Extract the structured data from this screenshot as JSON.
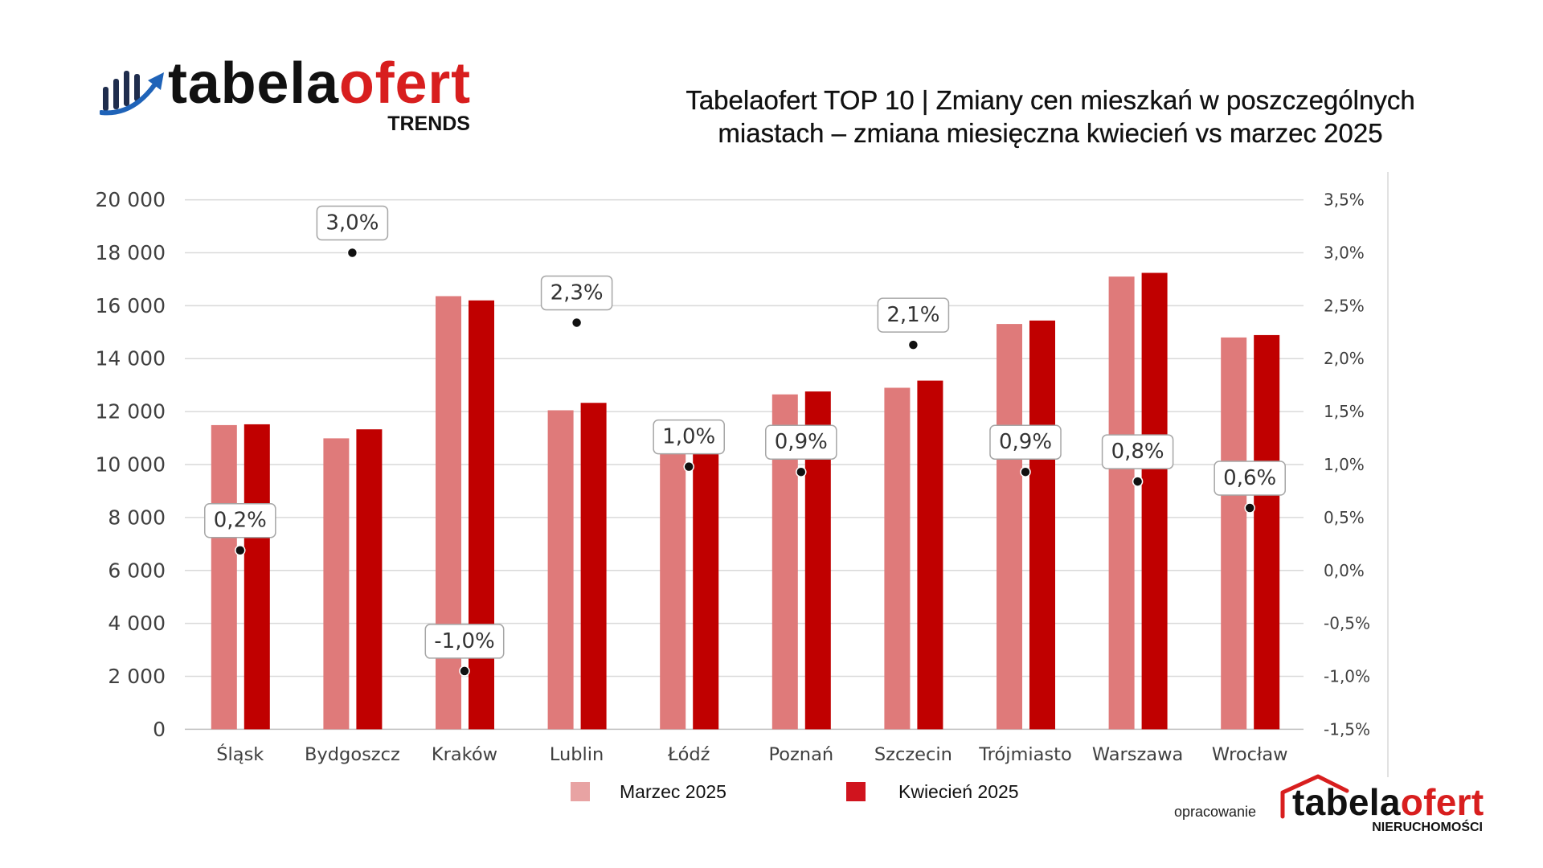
{
  "header": {
    "logo": {
      "brand_part1": "tabela",
      "brand_part2": "ofert",
      "sub": "TRENDS",
      "icon": "bar-chart-growth-icon"
    }
  },
  "chart_data": {
    "type": "bar",
    "title_lines": [
      "Tabelaofert TOP 10 | Zmiany cen mieszkań w poszczególnych",
      "miastach – zmiana miesięczna kwiecień vs marzec 2025"
    ],
    "categories": [
      "Śląsk",
      "Bydgoszcz",
      "Kraków",
      "Lublin",
      "Łódź",
      "Poznań",
      "Szczecin",
      "Trójmiasto",
      "Warszawa",
      "Wrocław"
    ],
    "y_left": {
      "min": 0,
      "max": 20000,
      "ticks": [
        0,
        2000,
        4000,
        6000,
        8000,
        10000,
        12000,
        14000,
        16000,
        18000,
        20000
      ],
      "tick_labels": [
        "0",
        "2 000",
        "4 000",
        "6 000",
        "8 000",
        "10 000",
        "12 000",
        "14 000",
        "16 000",
        "18 000",
        "20 000"
      ]
    },
    "y_right": {
      "min": -1.5,
      "max": 3.5,
      "ticks": [
        -1.5,
        -1.0,
        -0.5,
        0.0,
        0.5,
        1.0,
        1.5,
        2.0,
        2.5,
        3.0,
        3.5
      ],
      "tick_labels": [
        "-1,5%",
        "-1,0%",
        "-0,5%",
        "0,0%",
        "0,5%",
        "1,0%",
        "1,5%",
        "2,0%",
        "2,5%",
        "3,0%",
        "3,5%"
      ]
    },
    "series": [
      {
        "name": "Marzec 2025",
        "color": "#df7a7a",
        "legend_color": "#e8a3a3",
        "values": [
          11490,
          10990,
          16360,
          12050,
          10410,
          12650,
          12900,
          15310,
          17100,
          14800
        ]
      },
      {
        "name": "Kwiecień 2025",
        "color": "#c00000",
        "legend_color": "#d0141e",
        "values": [
          11520,
          11330,
          16200,
          12330,
          10520,
          12760,
          13170,
          15440,
          17240,
          14890
        ]
      }
    ],
    "pct_change": {
      "color": "#111111",
      "values": [
        0.19,
        3.0,
        -0.95,
        2.34,
        0.98,
        0.93,
        2.13,
        0.93,
        0.84,
        0.59
      ],
      "data_labels": [
        "0,2%",
        "3,0%",
        "-1,0%",
        "2,3%",
        "1,0%",
        "0,9%",
        "2,1%",
        "0,9%",
        "0,8%",
        "0,6%"
      ]
    },
    "legend": "bottom",
    "grid": true
  },
  "footer": {
    "credit": "opracowanie",
    "logo": {
      "brand_part1": "tabela",
      "brand_part2": "ofert",
      "sub": "NIERUCHOMOŚCI",
      "icon": "house-roof-icon"
    }
  },
  "colors": {
    "brand_red": "#d81e1e",
    "brand_dark": "#111111",
    "icon_navy": "#1f2d4d",
    "icon_blue": "#1f63b8"
  }
}
